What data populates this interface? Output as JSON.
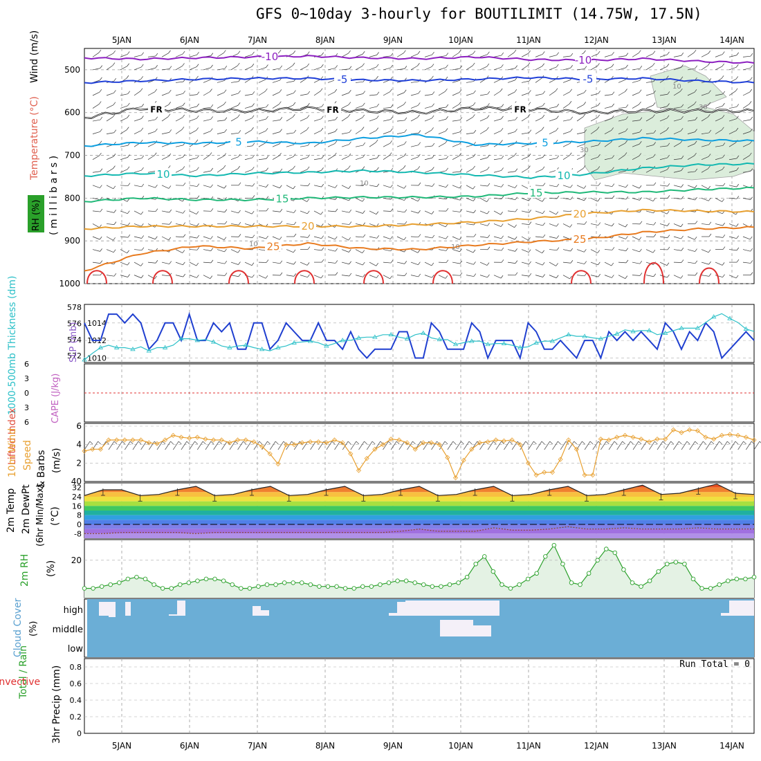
{
  "title": "GFS 0~10day 3-hourly for BOUTILIMIT (14.75W, 17.5N)",
  "colors": {
    "purple": "#8c1fc0",
    "blue": "#1f3fd8",
    "lightblue": "#0d9fe0",
    "teal": "#12b8b0",
    "green": "#1fb878",
    "orange": "#e8a030",
    "dorange": "#e87a1e",
    "red": "#e03030",
    "cyan": "#2cc0c8",
    "navy": "#1f3fd0",
    "rh": "#2aa02a",
    "cloud": "#6baed6"
  },
  "chart_data": [
    {
      "type": "line",
      "panel": "upper-air cross section",
      "ylabel_parts": [
        "Wind (m/s)",
        "Temperature (°C)",
        "RH (%)",
        "( m i l l i b a r s )"
      ],
      "x": [
        "5JAN",
        "6JAN",
        "7JAN",
        "8JAN",
        "9JAN",
        "10JAN",
        "11JAN",
        "12JAN",
        "13JAN",
        "14JAN"
      ],
      "y_ticks": [
        500,
        600,
        700,
        800,
        900,
        1000
      ],
      "ylim": [
        1000,
        450
      ],
      "isotherm_labels": [
        {
          "label": "-10",
          "series": "-10"
        },
        {
          "label": "-10",
          "series": "-10"
        },
        {
          "label": "-5",
          "series": "-5"
        },
        {
          "label": "-5",
          "series": "-5"
        },
        {
          "label": "FR",
          "series": "FR"
        },
        {
          "label": "FR",
          "series": "FR"
        },
        {
          "label": "FR",
          "series": "FR"
        },
        {
          "label": "5",
          "series": "5"
        },
        {
          "label": "5",
          "series": "5"
        },
        {
          "label": "10",
          "series": "10"
        },
        {
          "label": "10",
          "series": "10"
        },
        {
          "label": "15",
          "series": "15"
        },
        {
          "label": "15",
          "series": "15"
        },
        {
          "label": "20",
          "series": "20"
        },
        {
          "label": "20",
          "series": "20"
        },
        {
          "label": "25",
          "series": "25"
        },
        {
          "label": "25",
          "series": "25"
        }
      ],
      "rh_labels": [
        "10",
        "10",
        "30",
        "30",
        "10",
        "10"
      ],
      "series": [
        {
          "name": "-10",
          "pressure": [
            472,
            475,
            472,
            470,
            468,
            472,
            474,
            470,
            476,
            478,
            474,
            480,
            484
          ]
        },
        {
          "name": "-5",
          "pressure": [
            530,
            526,
            522,
            520,
            520,
            524,
            525,
            522,
            518,
            522,
            520,
            526,
            530
          ]
        },
        {
          "name": "FR",
          "pressure": [
            612,
            590,
            595,
            596,
            590,
            596,
            600,
            590,
            592,
            600,
            596,
            596,
            596
          ]
        },
        {
          "name": "5",
          "pressure": [
            678,
            670,
            672,
            668,
            672,
            660,
            652,
            675,
            672,
            668,
            660,
            664,
            666
          ]
        },
        {
          "name": "10",
          "pressure": [
            748,
            742,
            748,
            742,
            740,
            736,
            740,
            746,
            752,
            744,
            730,
            722,
            720
          ]
        },
        {
          "name": "15",
          "pressure": [
            808,
            800,
            804,
            804,
            800,
            798,
            798,
            796,
            788,
            786,
            786,
            780,
            776
          ]
        },
        {
          "name": "20",
          "pressure": [
            872,
            866,
            866,
            866,
            866,
            866,
            862,
            856,
            848,
            836,
            828,
            830,
            832
          ]
        },
        {
          "name": "25",
          "pressure": [
            970,
            930,
            912,
            918,
            906,
            918,
            920,
            910,
            902,
            896,
            880,
            872,
            868
          ]
        }
      ]
    },
    {
      "type": "line",
      "panel": "thickness and slp",
      "ylabel_left": "1000-500mb Thickness (dm)",
      "ylabel_right": "SLP (mb)",
      "y_ticks_left": [
        "578",
        "576",
        "574",
        "572"
      ],
      "y_ticks_right": [
        "1014",
        "1012",
        "1010"
      ],
      "series": [
        {
          "name": "SLP (mb)",
          "values": [
            1014,
            1012,
            1012,
            1015,
            1015,
            1014,
            1015,
            1014,
            1011,
            1012,
            1014,
            1014,
            1012,
            1015,
            1012,
            1012,
            1014,
            1013,
            1014,
            1011,
            1011,
            1014,
            1014,
            1011,
            1012,
            1014,
            1013,
            1012,
            1012,
            1014,
            1012,
            1012,
            1011,
            1013,
            1011,
            1010,
            1011,
            1011,
            1011,
            1013,
            1013,
            1010,
            1010,
            1014,
            1013,
            1011,
            1011,
            1011,
            1014,
            1013,
            1010,
            1012,
            1012,
            1012,
            1010,
            1014,
            1013,
            1011,
            1011,
            1012,
            1011,
            1010,
            1012,
            1012,
            1010,
            1013,
            1012,
            1013,
            1012,
            1013,
            1012,
            1011,
            1014,
            1013,
            1011,
            1013,
            1012,
            1014,
            1013,
            1010,
            1011,
            1012,
            1013,
            1012
          ]
        },
        {
          "name": "1000-500mb Thickness (dm)",
          "values": [
            571.5,
            572.3,
            573,
            573.3,
            573,
            573,
            572.8,
            573.1,
            572.6,
            573,
            573,
            573.3,
            574.1,
            574.1,
            573.9,
            574,
            573.7,
            573.2,
            573,
            573.2,
            573.3,
            573,
            572.8,
            572.6,
            573,
            573.2,
            573.6,
            573.7,
            573.8,
            573.6,
            573.2,
            573.5,
            573.9,
            573.9,
            574.2,
            574.3,
            574.3,
            574.6,
            574.6,
            574.3,
            574.1,
            574.6,
            574.8,
            574.2,
            574,
            574,
            573.4,
            573.6,
            573.8,
            573.8,
            573.4,
            573.5,
            573.5,
            573.3,
            573,
            573.1,
            573.6,
            573.8,
            573.8,
            574.2,
            574.6,
            574.4,
            574.4,
            574.2,
            574.1,
            574.4,
            574.7,
            575.2,
            575,
            575.1,
            575.1,
            574.6,
            574.8,
            575.1,
            575.4,
            575.4,
            575.4,
            576.1,
            576.8,
            577.2,
            576.6,
            576.1,
            575.3,
            575
          ]
        }
      ]
    },
    {
      "type": "line",
      "panel": "lifted index and cape",
      "ylabel_left": "Lifted Index",
      "ylabel_right": "CAPE (J/kg)",
      "y_ticks": [
        "6",
        "3",
        "0",
        "3",
        "6"
      ],
      "series": [
        {
          "name": "Lifted Index",
          "values": [
            0
          ]
        }
      ]
    },
    {
      "type": "line",
      "panel": "10m wind",
      "ylabel": [
        "10m Wind",
        "Speed",
        "& Barbs",
        "(m/s)"
      ],
      "y_ticks": [
        "6",
        "4",
        "2",
        "40"
      ],
      "series": [
        {
          "name": "10m Wind Speed",
          "values": [
            3.3,
            3.5,
            3.5,
            4.5,
            4.5,
            4.5,
            4.5,
            4.5,
            4.2,
            4.1,
            4.5,
            5,
            4.8,
            4.7,
            4.8,
            4.6,
            4.5,
            4.5,
            4.2,
            4.5,
            4.5,
            4.3,
            3.8,
            3,
            1.9,
            4,
            4,
            4.2,
            4.3,
            4.3,
            4.2,
            4.5,
            4.2,
            3,
            1.2,
            2.5,
            3.5,
            4,
            4.6,
            4.5,
            4.2,
            3.5,
            4.2,
            4.2,
            4,
            2.6,
            0.4,
            2.3,
            3.5,
            4.2,
            4.3,
            4.5,
            4.4,
            4.5,
            4,
            2,
            0.7,
            1,
            1,
            2.4,
            4.5,
            3.5,
            0.7,
            0.7,
            4.6,
            4.5,
            4.8,
            5,
            4.8,
            4.6,
            4.3,
            4.6,
            4.6,
            5.6,
            5.3,
            5.6,
            5.5,
            4.8,
            4.6,
            5,
            5.1,
            5,
            4.8,
            4.5
          ]
        }
      ]
    },
    {
      "type": "area",
      "panel": "2m temperature",
      "ylabel": [
        "2m Temp",
        "2m DewPt",
        "(6hr Min/Max)",
        "(°C)"
      ],
      "y_ticks": [
        "32",
        "24",
        "16",
        "8",
        "0",
        "-8"
      ],
      "series": [
        {
          "name": "2m Temp",
          "values": [
            25,
            30,
            30,
            25,
            26,
            30,
            33,
            25,
            26,
            30,
            33,
            25,
            26,
            30,
            33,
            25,
            26,
            30,
            33,
            25,
            26,
            30,
            33,
            25,
            26,
            30,
            33,
            25,
            26,
            30,
            34,
            26,
            27,
            31,
            35,
            27,
            26
          ]
        },
        {
          "name": "2m DewPt",
          "values": [
            -8,
            -8,
            -7,
            -7,
            -7,
            -7,
            -8,
            -7,
            -7,
            -7,
            -7,
            -7,
            -7,
            -7,
            -7,
            -7,
            -7,
            -6,
            -4,
            -6,
            -6,
            -6,
            -3,
            -5,
            -5,
            -4,
            -2,
            -4,
            -4,
            -3,
            -4,
            -4,
            -4,
            -3,
            -4,
            -4,
            -4
          ]
        }
      ]
    },
    {
      "type": "area",
      "panel": "2m relative humidity",
      "ylabel": [
        "2m RH",
        "(%)"
      ],
      "y_ticks": [
        "20"
      ],
      "series": [
        {
          "name": "2m RH",
          "values": [
            5,
            5,
            6,
            7,
            8,
            10,
            11,
            10,
            7,
            5,
            5,
            7,
            8,
            9,
            10,
            10,
            9,
            7,
            5,
            5,
            6,
            7,
            7,
            8,
            8,
            8,
            7,
            6,
            6,
            6,
            5,
            5,
            6,
            6,
            7,
            8,
            9,
            9,
            8,
            7,
            6,
            6,
            7,
            8,
            11,
            18,
            22,
            14,
            7,
            5,
            7,
            10,
            13,
            22,
            28,
            18,
            8,
            7,
            13,
            20,
            26,
            24,
            15,
            8,
            6,
            9,
            14,
            18,
            19,
            18,
            10,
            5,
            5,
            7,
            9,
            10,
            10,
            11
          ]
        }
      ]
    },
    {
      "type": "table",
      "panel": "cloud cover",
      "ylabel": [
        "Cloud Cover",
        "(%)"
      ],
      "layers": [
        "high",
        "middle",
        "low"
      ]
    },
    {
      "type": "bar",
      "panel": "3hr precip",
      "ylabel_left": [
        "Total / Rain",
        "Convective"
      ],
      "ylabel_right": "3hr Precip (mm)",
      "y_ticks": [
        "0.8",
        "0.6",
        "0.4",
        "0.2",
        "0"
      ],
      "ylim": [
        0,
        0.9
      ],
      "annotation": "Run Total = 0",
      "values": [
        0
      ]
    }
  ]
}
